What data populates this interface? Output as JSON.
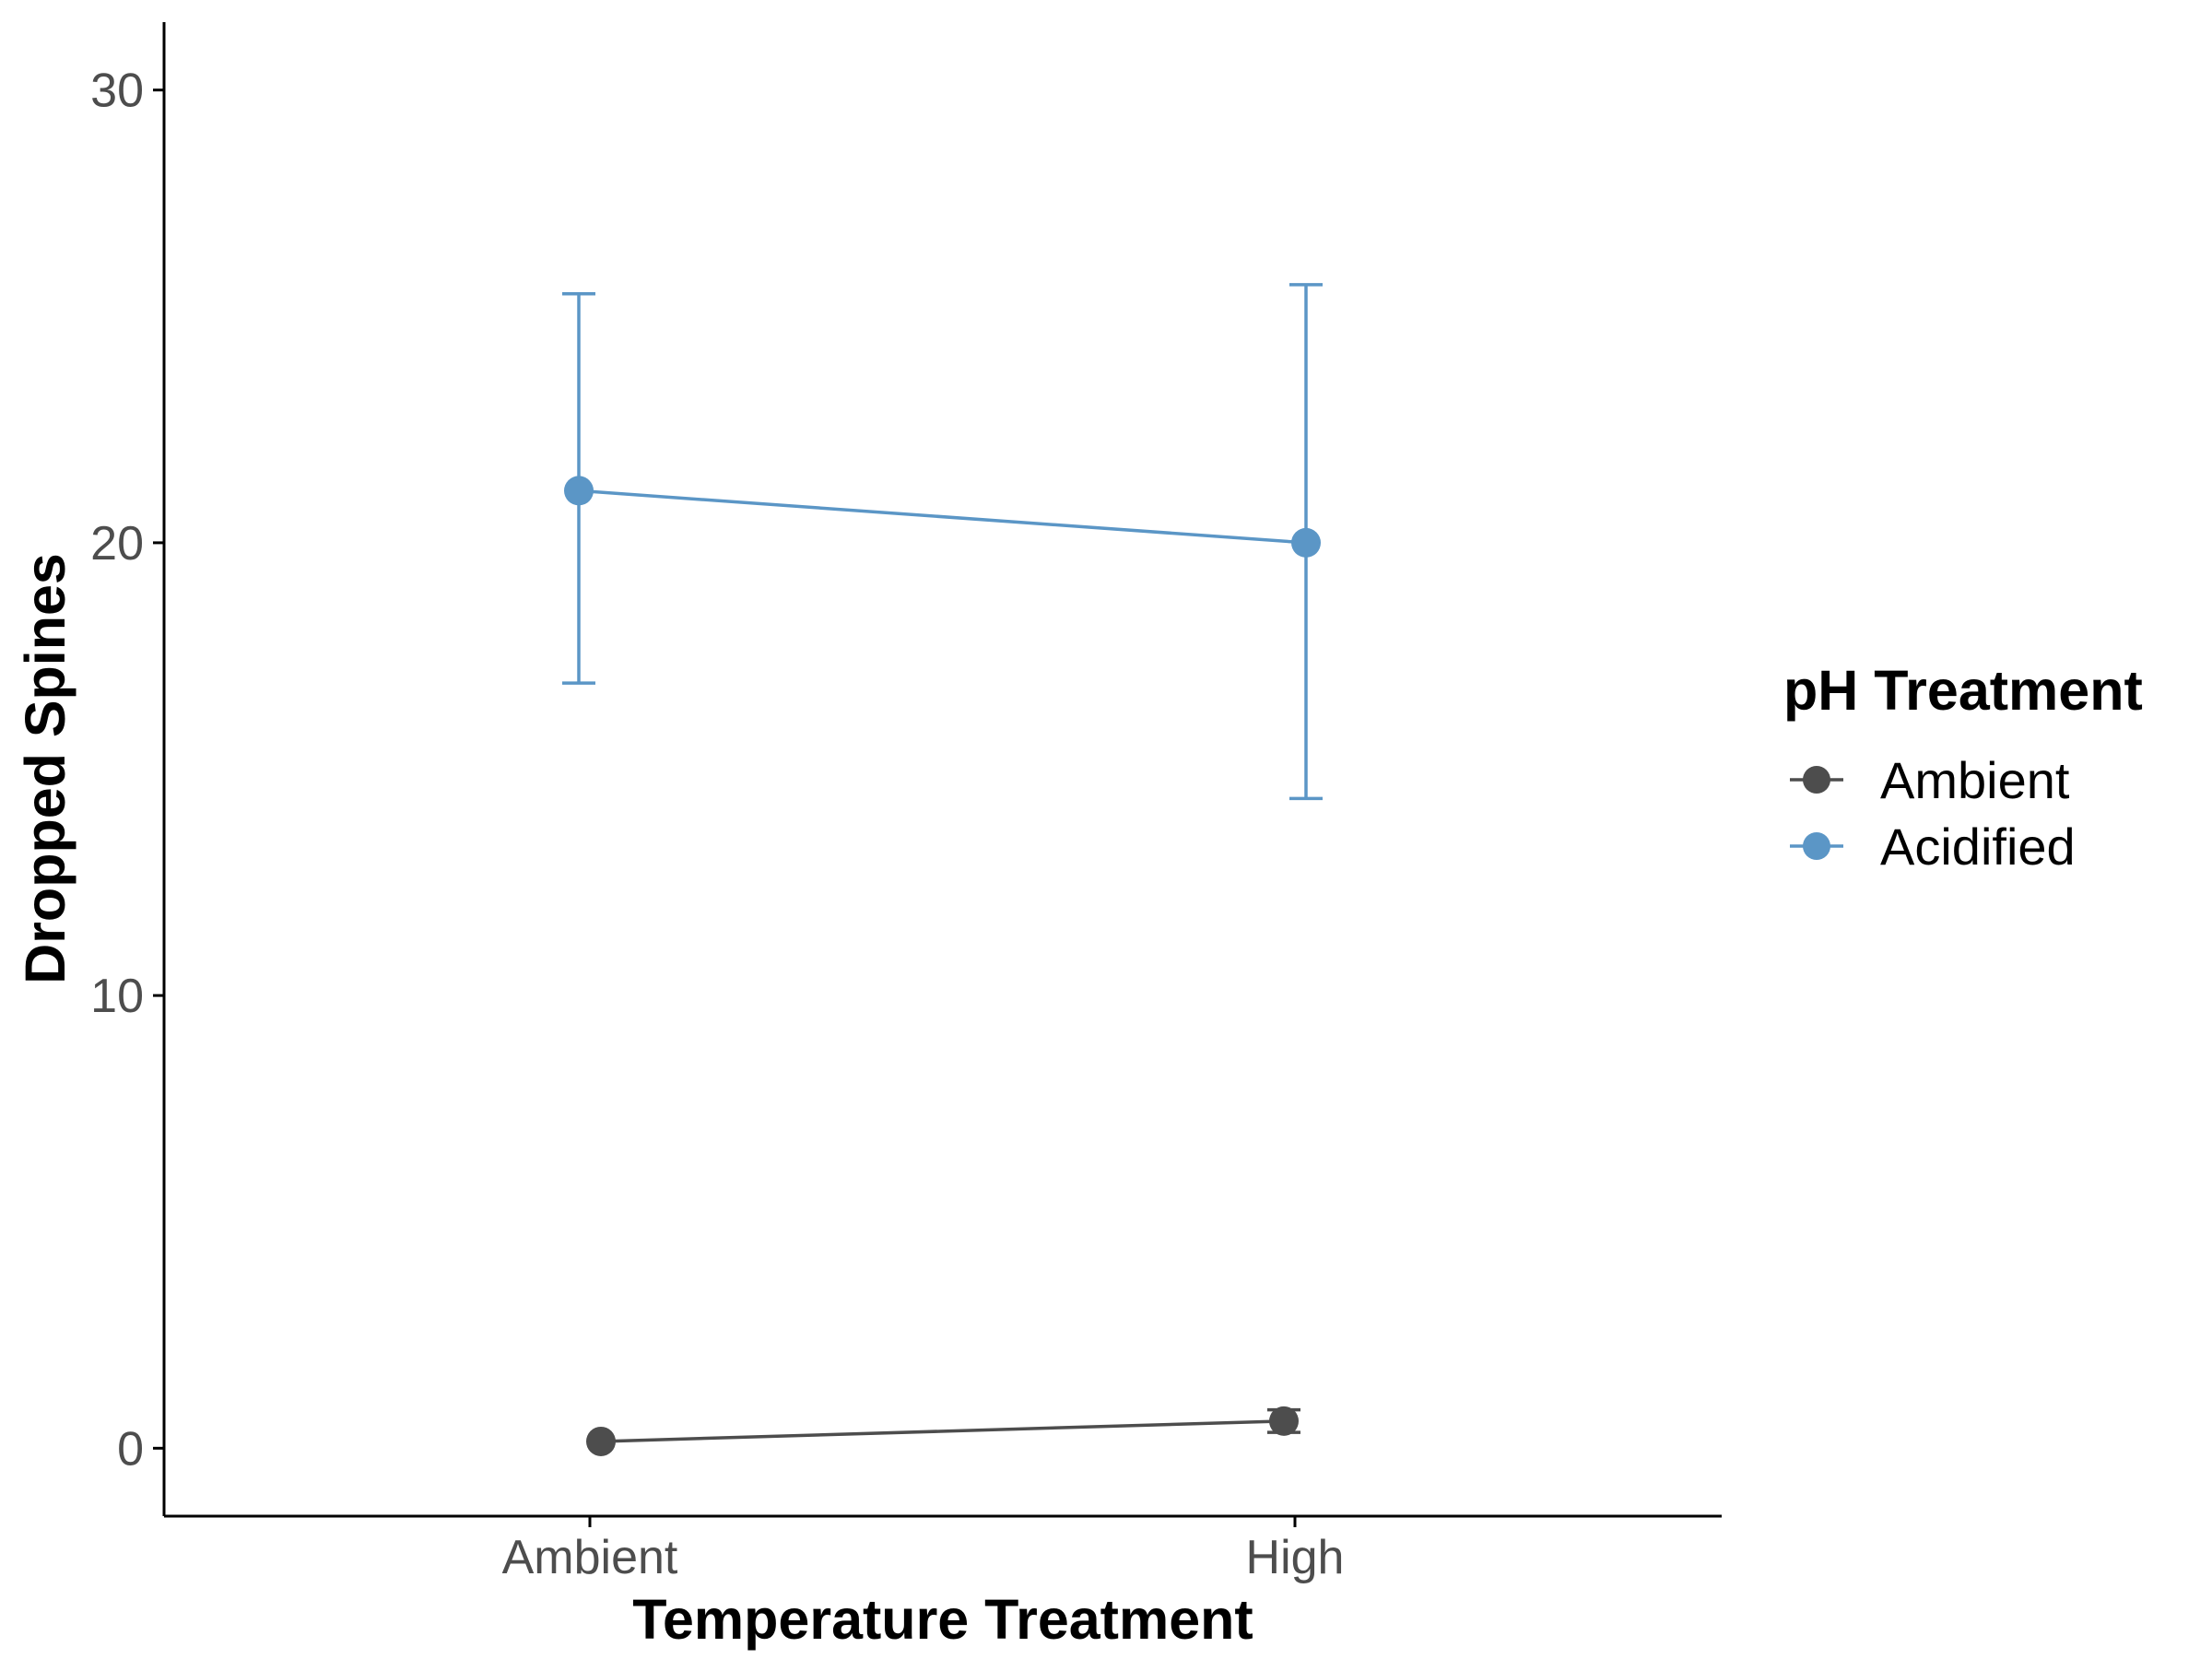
{
  "chart_data": {
    "type": "line",
    "xlabel": "Temperature Treatment",
    "ylabel": "Dropped Spines",
    "categories": [
      "Ambient",
      "High"
    ],
    "ylim": [
      -1.5,
      31.5
    ],
    "yticks": [
      0,
      10,
      20,
      30
    ],
    "grid": false,
    "legend": {
      "title": "pH Treatment",
      "placement": "right"
    },
    "series": [
      {
        "name": "Ambient",
        "color": "#4d4d4d",
        "values": [
          0.15,
          0.6
        ],
        "error_low": [
          0.15,
          0.35
        ],
        "error_high": [
          0.15,
          0.85
        ]
      },
      {
        "name": "Acidified",
        "color": "#5b96c6",
        "values": [
          21.15,
          20.0
        ],
        "error_low": [
          16.9,
          14.35
        ],
        "error_high": [
          25.5,
          25.7
        ]
      }
    ]
  }
}
